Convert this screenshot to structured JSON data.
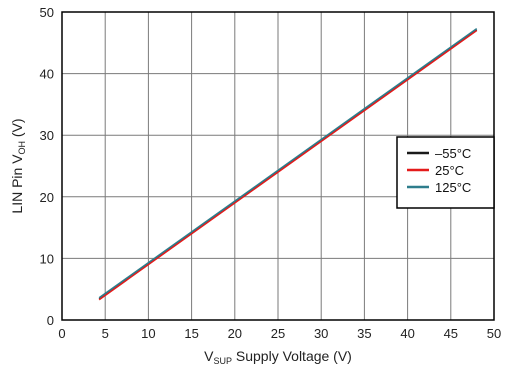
{
  "chart_data": {
    "type": "line",
    "title": "",
    "xlabel": {
      "main": "V",
      "sub": "SUP",
      "rest": " Supply Voltage (V)"
    },
    "ylabel": {
      "main": "LIN Pin V",
      "sub": "OH",
      "rest": "  (V)"
    },
    "xlim": [
      0,
      50
    ],
    "ylim": [
      0,
      50
    ],
    "xticks": [
      0,
      5,
      10,
      15,
      20,
      25,
      30,
      35,
      40,
      45,
      50
    ],
    "yticks": [
      0,
      10,
      20,
      30,
      40,
      50
    ],
    "grid": true,
    "legend_position": "right-middle",
    "series": [
      {
        "name": "–55°C",
        "color": "#1a1a1a",
        "x": [
          4.3,
          48
        ],
        "y": [
          3.4,
          47.1
        ]
      },
      {
        "name": "25°C",
        "color": "#e41b1b",
        "x": [
          4.3,
          48
        ],
        "y": [
          3.3,
          47.0
        ]
      },
      {
        "name": "125°C",
        "color": "#2e7d8c",
        "x": [
          4.3,
          48
        ],
        "y": [
          3.6,
          47.3
        ]
      }
    ]
  }
}
